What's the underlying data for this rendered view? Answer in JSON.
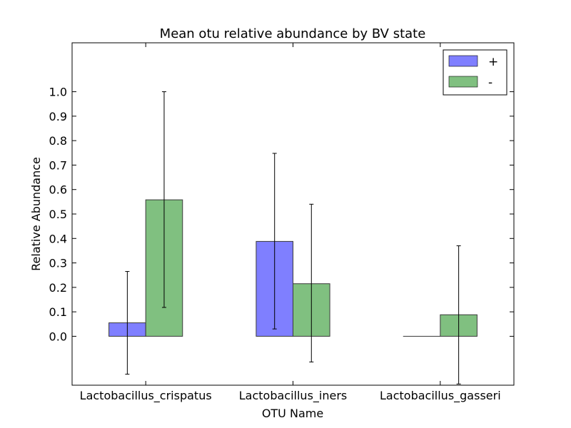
{
  "chart_data": {
    "type": "bar",
    "title": "Mean otu relative abundance by BV state",
    "xlabel": "OTU Name",
    "ylabel": "Relative Abundance",
    "categories": [
      "Lactobacillus_crispatus",
      "Lactobacillus_iners",
      "Lactobacillus_gasseri"
    ],
    "yticks": [
      "0.0",
      "0.1",
      "0.2",
      "0.3",
      "0.4",
      "0.5",
      "0.6",
      "0.7",
      "0.8",
      "0.9",
      "1.0"
    ],
    "ylim": [
      -0.2,
      1.2
    ],
    "grid": false,
    "legend_position": "top-right",
    "series": [
      {
        "name": "+",
        "color": "#7f7fff",
        "values": [
          0.055,
          0.388,
          0.0
        ],
        "error_low": [
          -0.155,
          0.03,
          0.0
        ],
        "error_high": [
          0.265,
          0.748,
          0.0
        ]
      },
      {
        "name": "-",
        "color": "#80c080",
        "values": [
          0.558,
          0.215,
          0.088
        ],
        "error_low": [
          0.118,
          -0.105,
          -0.195
        ],
        "error_high": [
          1.0,
          0.54,
          0.37
        ]
      }
    ]
  }
}
